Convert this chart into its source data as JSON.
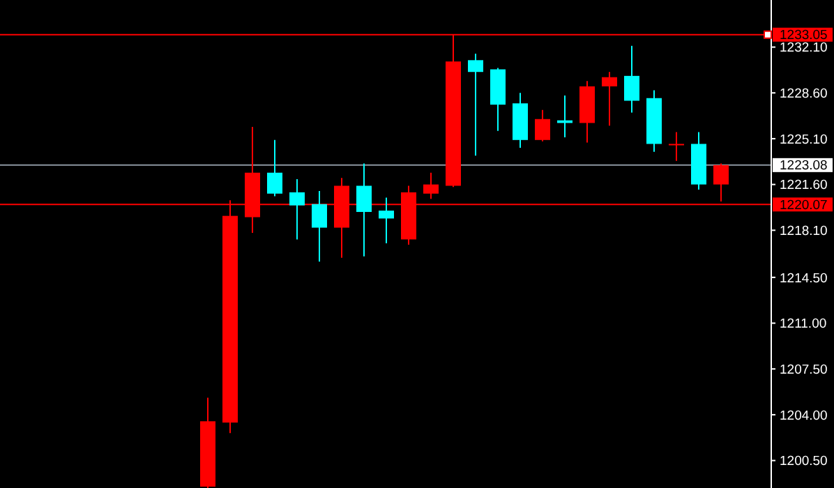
{
  "chart_data": {
    "type": "candlestick",
    "categories": [
      null,
      null,
      null,
      null,
      null,
      null,
      null,
      null,
      null,
      null,
      null,
      null,
      null,
      null,
      null,
      null,
      null,
      null,
      null,
      null,
      null,
      null,
      null,
      null
    ],
    "ohlc": [
      [
        1198.5,
        1205.3,
        1198.4,
        1203.5
      ],
      [
        1203.4,
        1220.4,
        1202.6,
        1219.2
      ],
      [
        1219.1,
        1226.0,
        1217.9,
        1222.5
      ],
      [
        1222.5,
        1225.0,
        1220.7,
        1220.9
      ],
      [
        1221.0,
        1222.0,
        1217.4,
        1220.0
      ],
      [
        1220.1,
        1221.1,
        1215.7,
        1218.3
      ],
      [
        1218.3,
        1222.1,
        1216.0,
        1221.5
      ],
      [
        1221.5,
        1223.2,
        1216.1,
        1219.5
      ],
      [
        1219.6,
        1220.6,
        1217.1,
        1219.0
      ],
      [
        1217.4,
        1221.5,
        1217.0,
        1221.0
      ],
      [
        1220.9,
        1222.5,
        1220.5,
        1221.6
      ],
      [
        1221.5,
        1233.05,
        1221.4,
        1231.0
      ],
      [
        1231.1,
        1231.6,
        1223.8,
        1230.2
      ],
      [
        1230.4,
        1230.5,
        1225.7,
        1227.7
      ],
      [
        1227.8,
        1228.6,
        1224.4,
        1225.0
      ],
      [
        1225.0,
        1227.3,
        1224.9,
        1226.6
      ],
      [
        1226.5,
        1228.4,
        1225.2,
        1226.3
      ],
      [
        1226.3,
        1229.5,
        1224.8,
        1229.1
      ],
      [
        1229.1,
        1230.2,
        1226.1,
        1229.8
      ],
      [
        1229.9,
        1232.2,
        1227.1,
        1228.0
      ],
      [
        1228.2,
        1228.8,
        1224.1,
        1224.7
      ],
      [
        1224.7,
        1225.6,
        1223.4,
        1224.7
      ],
      [
        1224.7,
        1225.6,
        1221.2,
        1221.6
      ],
      [
        1221.6,
        1223.2,
        1220.3,
        1223.08
      ]
    ],
    "colors": [
      "#ff0000",
      "#ff0000",
      "#ff0000",
      "#00ffff",
      "#00ffff",
      "#00ffff",
      "#ff0000",
      "#00ffff",
      "#00ffff",
      "#ff0000",
      "#ff0000",
      "#ff0000",
      "#00ffff",
      "#00ffff",
      "#00ffff",
      "#ff0000",
      "#00ffff",
      "#ff0000",
      "#ff0000",
      "#00ffff",
      "#00ffff",
      "#ff0000",
      "#00ffff",
      "#ff0000"
    ],
    "ylim": [
      1198.4,
      1235.7
    ],
    "yticks": [
      {
        "value": 1200.5,
        "label": "1200.50"
      },
      {
        "value": 1204,
        "label": "1204.00"
      },
      {
        "value": 1207.5,
        "label": "1207.50"
      },
      {
        "value": 1211,
        "label": "1211.00"
      },
      {
        "value": 1214.5,
        "label": "1214.50"
      },
      {
        "value": 1218.1,
        "label": "1218.10"
      },
      {
        "value": 1221.6,
        "label": "1221.60"
      },
      {
        "value": 1225.1,
        "label": "1225.10"
      },
      {
        "value": 1228.6,
        "label": "1228.60"
      },
      {
        "value": 1232.1,
        "label": "1232.10"
      }
    ],
    "ref_lines": [
      {
        "axis": "y",
        "value": 1233.05,
        "label": "1233.05",
        "color": "#ff0000"
      },
      {
        "axis": "y",
        "value": 1223.08,
        "label": "1223.08",
        "color": "#8c96a0"
      },
      {
        "axis": "y",
        "value": 1220.07,
        "label": "1220.07",
        "color": "#ff0000"
      }
    ],
    "grid": false
  }
}
